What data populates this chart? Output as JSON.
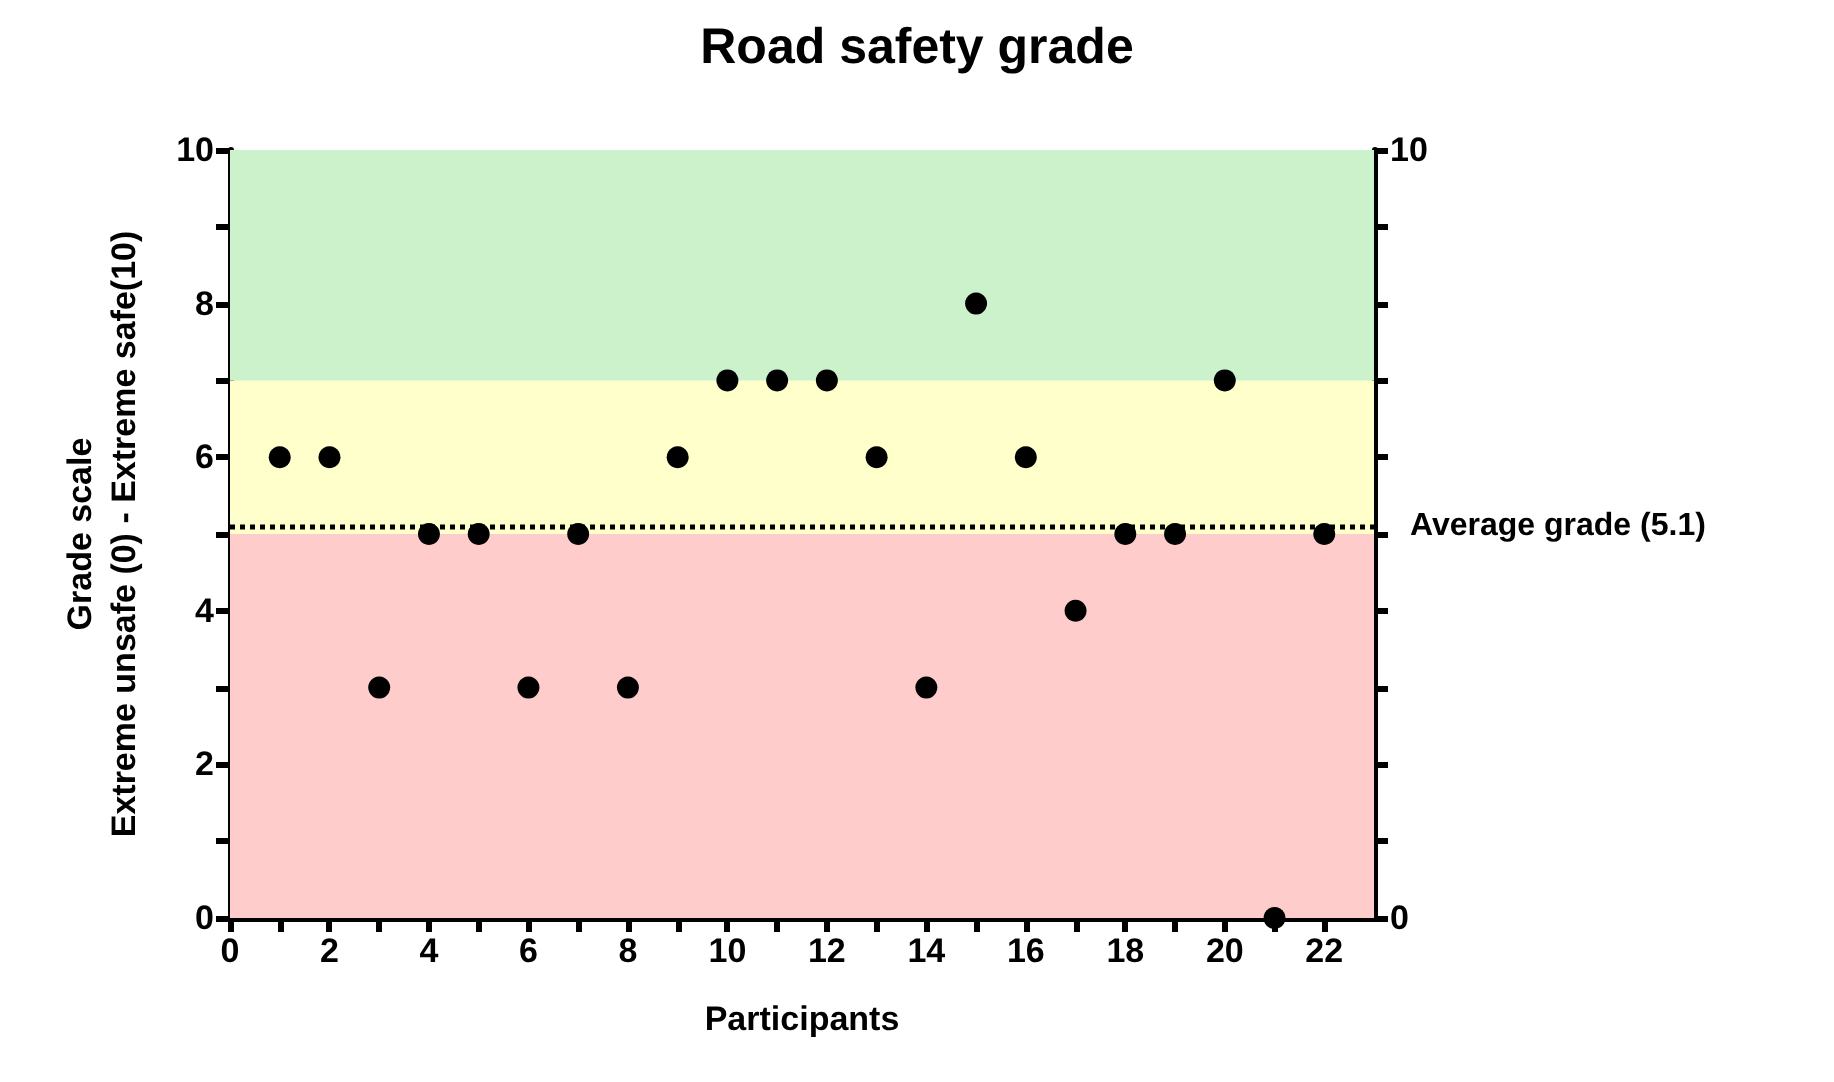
{
  "chart_data": {
    "type": "scatter",
    "title": "Road safety grade",
    "xlabel": "Participants",
    "ylabel": "Grade scale\nExtreme unsafe (0) - Extreme safe(10)",
    "x": [
      1,
      2,
      3,
      4,
      5,
      6,
      7,
      8,
      9,
      10,
      11,
      12,
      13,
      14,
      15,
      16,
      17,
      18,
      19,
      20,
      21,
      22
    ],
    "series": [
      {
        "color": "#000000",
        "values": [
          6,
          6,
          3,
          5,
          5,
          3,
          5,
          3,
          6,
          7,
          7,
          7,
          6,
          3,
          8,
          6,
          4,
          5,
          5,
          7,
          0,
          5
        ]
      }
    ],
    "xlim": [
      0,
      23
    ],
    "xticks": [
      0,
      {
        "value": 1,
        "label": null
      },
      2,
      {
        "value": 3,
        "label": null
      },
      4,
      {
        "value": 5,
        "label": null
      },
      6,
      {
        "value": 7,
        "label": null
      },
      8,
      {
        "value": 9,
        "label": null
      },
      10,
      {
        "value": 11,
        "label": null
      },
      12,
      {
        "value": 13,
        "label": null
      },
      14,
      {
        "value": 15,
        "label": null
      },
      16,
      {
        "value": 17,
        "label": null
      },
      18,
      {
        "value": 19,
        "label": null
      },
      20,
      {
        "value": 21,
        "label": null
      },
      22
    ],
    "ylim": [
      0,
      10
    ],
    "yticks": [
      0,
      {
        "value": 1,
        "label": null
      },
      2,
      {
        "value": 3,
        "label": null
      },
      4,
      {
        "value": 5,
        "label": null
      },
      6,
      {
        "value": 7,
        "label": null
      },
      8,
      {
        "value": 9,
        "label": null
      },
      10
    ],
    "y2lim": [
      0,
      10
    ],
    "y2ticks": [
      0,
      {
        "value": 1,
        "label": null
      },
      {
        "value": 2,
        "label": null
      },
      {
        "value": 3,
        "label": null
      },
      {
        "value": 4,
        "label": null
      },
      {
        "value": 5,
        "label": null
      },
      {
        "value": 6,
        "label": null
      },
      {
        "value": 7,
        "label": null
      },
      {
        "value": 8,
        "label": null
      },
      {
        "value": 9,
        "label": null
      },
      10
    ],
    "ref_lines": [
      {
        "axis": "y",
        "value": 5.1,
        "label": "Average grade (5.1)",
        "color": "#000000",
        "line_style": "dotted"
      }
    ],
    "bands": [
      {
        "axis": "y",
        "from": 0,
        "to": 5,
        "color": "#ffcccc"
      },
      {
        "axis": "y",
        "from": 5,
        "to": 7,
        "color": "#ffffcc"
      },
      {
        "axis": "y",
        "from": 7,
        "to": 10,
        "color": "#ccf2cc"
      }
    ],
    "grid": false,
    "marker": "circle"
  }
}
